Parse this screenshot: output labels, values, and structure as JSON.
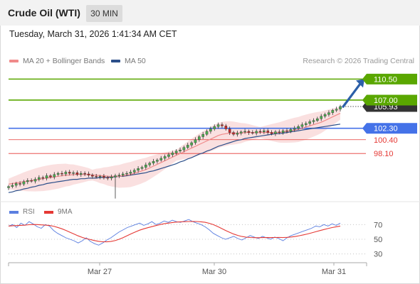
{
  "header": {
    "title": "Crude Oil (WTI)",
    "timeframe": "30 MIN"
  },
  "timestamp": "Tuesday, March 31, 2026 1:41:34 AM CET",
  "legend": {
    "items": [
      {
        "label": "MA 20 + Bollinger Bands",
        "color": "#f08a8a"
      },
      {
        "label": "MA 50",
        "color": "#2c4f8a"
      }
    ],
    "credit": "Research © 2026 Trading Central"
  },
  "colors": {
    "green": "#5aa700",
    "blue": "#4472e8",
    "red": "#e53935",
    "arrow": "#2c5fa8",
    "candle_up": "#4caf50",
    "candle_down": "#c62828",
    "current_price_bg": "#333333"
  },
  "chart_data": [
    {
      "type": "candlestick",
      "x_ticks": [
        "Mar 27",
        "Mar 30",
        "Mar 31"
      ],
      "ylim": [
        90.2,
        112.2
      ],
      "current_price": "105.93",
      "levels": [
        {
          "label": "110.50",
          "value": 110.5,
          "kind": "resistance",
          "style": "badge-green"
        },
        {
          "label": "107.00",
          "value": 107.0,
          "kind": "resistance",
          "style": "badge-green"
        },
        {
          "label": "102.30",
          "value": 102.3,
          "kind": "pivot",
          "style": "badge-blue"
        },
        {
          "label": "100.40",
          "value": 100.4,
          "kind": "support",
          "style": "text-red"
        },
        {
          "label": "98.10",
          "value": 98.1,
          "kind": "support",
          "style": "text-red"
        }
      ],
      "forecast_arrow": {
        "from": 105.9,
        "to": 110.5
      },
      "close": [
        92.6,
        92.8,
        93.1,
        93.0,
        93.4,
        93.6,
        93.5,
        93.8,
        94.1,
        94.0,
        94.4,
        94.2,
        94.6,
        94.8,
        94.7,
        95.0,
        94.8,
        94.9,
        94.6,
        94.8,
        94.7,
        94.5,
        94.3,
        94.2,
        94.3,
        94.1,
        94.0,
        94.2,
        94.4,
        94.5,
        94.7,
        94.8,
        95.0,
        95.3,
        95.6,
        95.8,
        96.2,
        96.5,
        96.8,
        97.0,
        97.3,
        97.6,
        97.9,
        98.2,
        98.5,
        98.7,
        99.1,
        99.5,
        99.9,
        100.4,
        100.9,
        101.3,
        101.8,
        102.2,
        102.6,
        102.9,
        102.7,
        102.2,
        101.6,
        101.3,
        101.5,
        101.7,
        101.8,
        101.6,
        101.5,
        101.8,
        101.7,
        101.9,
        101.6,
        101.4,
        101.7,
        101.6,
        101.9,
        101.8,
        102.1,
        102.3,
        102.6,
        102.9,
        103.1,
        103.4,
        103.6,
        103.9,
        104.3,
        104.6,
        104.9,
        105.3,
        105.5,
        105.93
      ],
      "ma20": [
        93.0,
        93.1,
        93.2,
        93.3,
        93.4,
        93.5,
        93.6,
        93.7,
        93.8,
        93.9,
        94.0,
        94.1,
        94.2,
        94.3,
        94.4,
        94.5,
        94.5,
        94.6,
        94.6,
        94.6,
        94.6,
        94.6,
        94.5,
        94.5,
        94.4,
        94.4,
        94.3,
        94.3,
        94.3,
        94.3,
        94.4,
        94.5,
        94.6,
        94.8,
        95.0,
        95.2,
        95.4,
        95.7,
        96.0,
        96.3,
        96.6,
        96.9,
        97.2,
        97.5,
        97.8,
        98.1,
        98.4,
        98.7,
        99.0,
        99.3,
        99.6,
        99.9,
        100.2,
        100.5,
        100.8,
        101.1,
        101.3,
        101.4,
        101.5,
        101.5,
        101.5,
        101.5,
        101.6,
        101.6,
        101.6,
        101.6,
        101.6,
        101.6,
        101.6,
        101.6,
        101.6,
        101.6,
        101.7,
        101.8,
        101.9,
        102.0,
        102.1,
        102.3,
        102.5,
        102.7,
        102.9,
        103.1,
        103.3,
        103.6,
        103.9,
        104.2,
        104.5,
        104.8
      ],
      "ma50": [
        91.6,
        91.7,
        91.9,
        92.0,
        92.2,
        92.3,
        92.5,
        92.6,
        92.8,
        92.9,
        93.1,
        93.2,
        93.3,
        93.4,
        93.5,
        93.6,
        93.7,
        93.8,
        93.8,
        93.9,
        93.9,
        94.0,
        94.0,
        94.0,
        94.1,
        94.1,
        94.1,
        94.2,
        94.2,
        94.3,
        94.3,
        94.4,
        94.5,
        94.6,
        94.7,
        94.8,
        94.9,
        95.1,
        95.2,
        95.4,
        95.6,
        95.8,
        96.0,
        96.2,
        96.4,
        96.7,
        96.9,
        97.2,
        97.4,
        97.7,
        98.0,
        98.2,
        98.5,
        98.7,
        99.0,
        99.3,
        99.5,
        99.7,
        99.9,
        100.1,
        100.3,
        100.4,
        100.6,
        100.7,
        100.8,
        100.9,
        101.0,
        101.1,
        101.2,
        101.3,
        101.4,
        101.4,
        101.5,
        101.6,
        101.7,
        101.8,
        101.9,
        102.0,
        102.1,
        102.2,
        102.3,
        102.4,
        102.5,
        102.6,
        102.7,
        102.8,
        102.9,
        103.0
      ]
    },
    {
      "type": "line",
      "series": [
        {
          "name": "RSI",
          "color": "#5b7fe0"
        },
        {
          "name": "9MA",
          "color": "#e53935"
        }
      ],
      "ylim": [
        20,
        80
      ],
      "y_ticks": [
        "70",
        "50",
        "30"
      ],
      "rsi": [
        68,
        70,
        66,
        72,
        69,
        74,
        71,
        67,
        65,
        70,
        68,
        62,
        58,
        55,
        52,
        50,
        48,
        45,
        48,
        52,
        47,
        44,
        42,
        45,
        49,
        52,
        56,
        60,
        63,
        66,
        68,
        70,
        72,
        69,
        71,
        74,
        70,
        72,
        75,
        73,
        76,
        74,
        73,
        75,
        77,
        74,
        72,
        70,
        67,
        63,
        58,
        55,
        52,
        50,
        52,
        54,
        51,
        49,
        52,
        55,
        53,
        51,
        54,
        52,
        50,
        53,
        51,
        48,
        52,
        55,
        57,
        59,
        61,
        63,
        65,
        68,
        67,
        70,
        68,
        71,
        69,
        72
      ],
      "ma9": [
        68,
        68.5,
        68.7,
        69,
        69.3,
        69.8,
        70.1,
        70,
        69.6,
        69.3,
        68.8,
        67.8,
        66.2,
        64.3,
        62.1,
        59.6,
        57.2,
        54.6,
        52.5,
        50.9,
        49.6,
        48.3,
        47.2,
        46.6,
        46.5,
        47,
        48.2,
        50,
        52.3,
        54.9,
        57.6,
        60.1,
        62.4,
        64.2,
        65.8,
        67.2,
        68.7,
        70,
        71.2,
        72,
        72.8,
        73.4,
        73.8,
        74,
        74.2,
        74.3,
        74.2,
        73.8,
        73.1,
        71.8,
        69.9,
        67.5,
        64.8,
        62,
        59.4,
        57.1,
        55.2,
        53.8,
        52.9,
        52.4,
        52.2,
        52.1,
        52.3,
        52.4,
        52.3,
        52.4,
        52.5,
        52.4,
        52.6,
        53.1,
        53.8,
        54.8,
        56,
        57.3,
        58.7,
        60.3,
        61.8,
        63.3,
        64.6,
        66,
        67,
        68
      ]
    }
  ]
}
